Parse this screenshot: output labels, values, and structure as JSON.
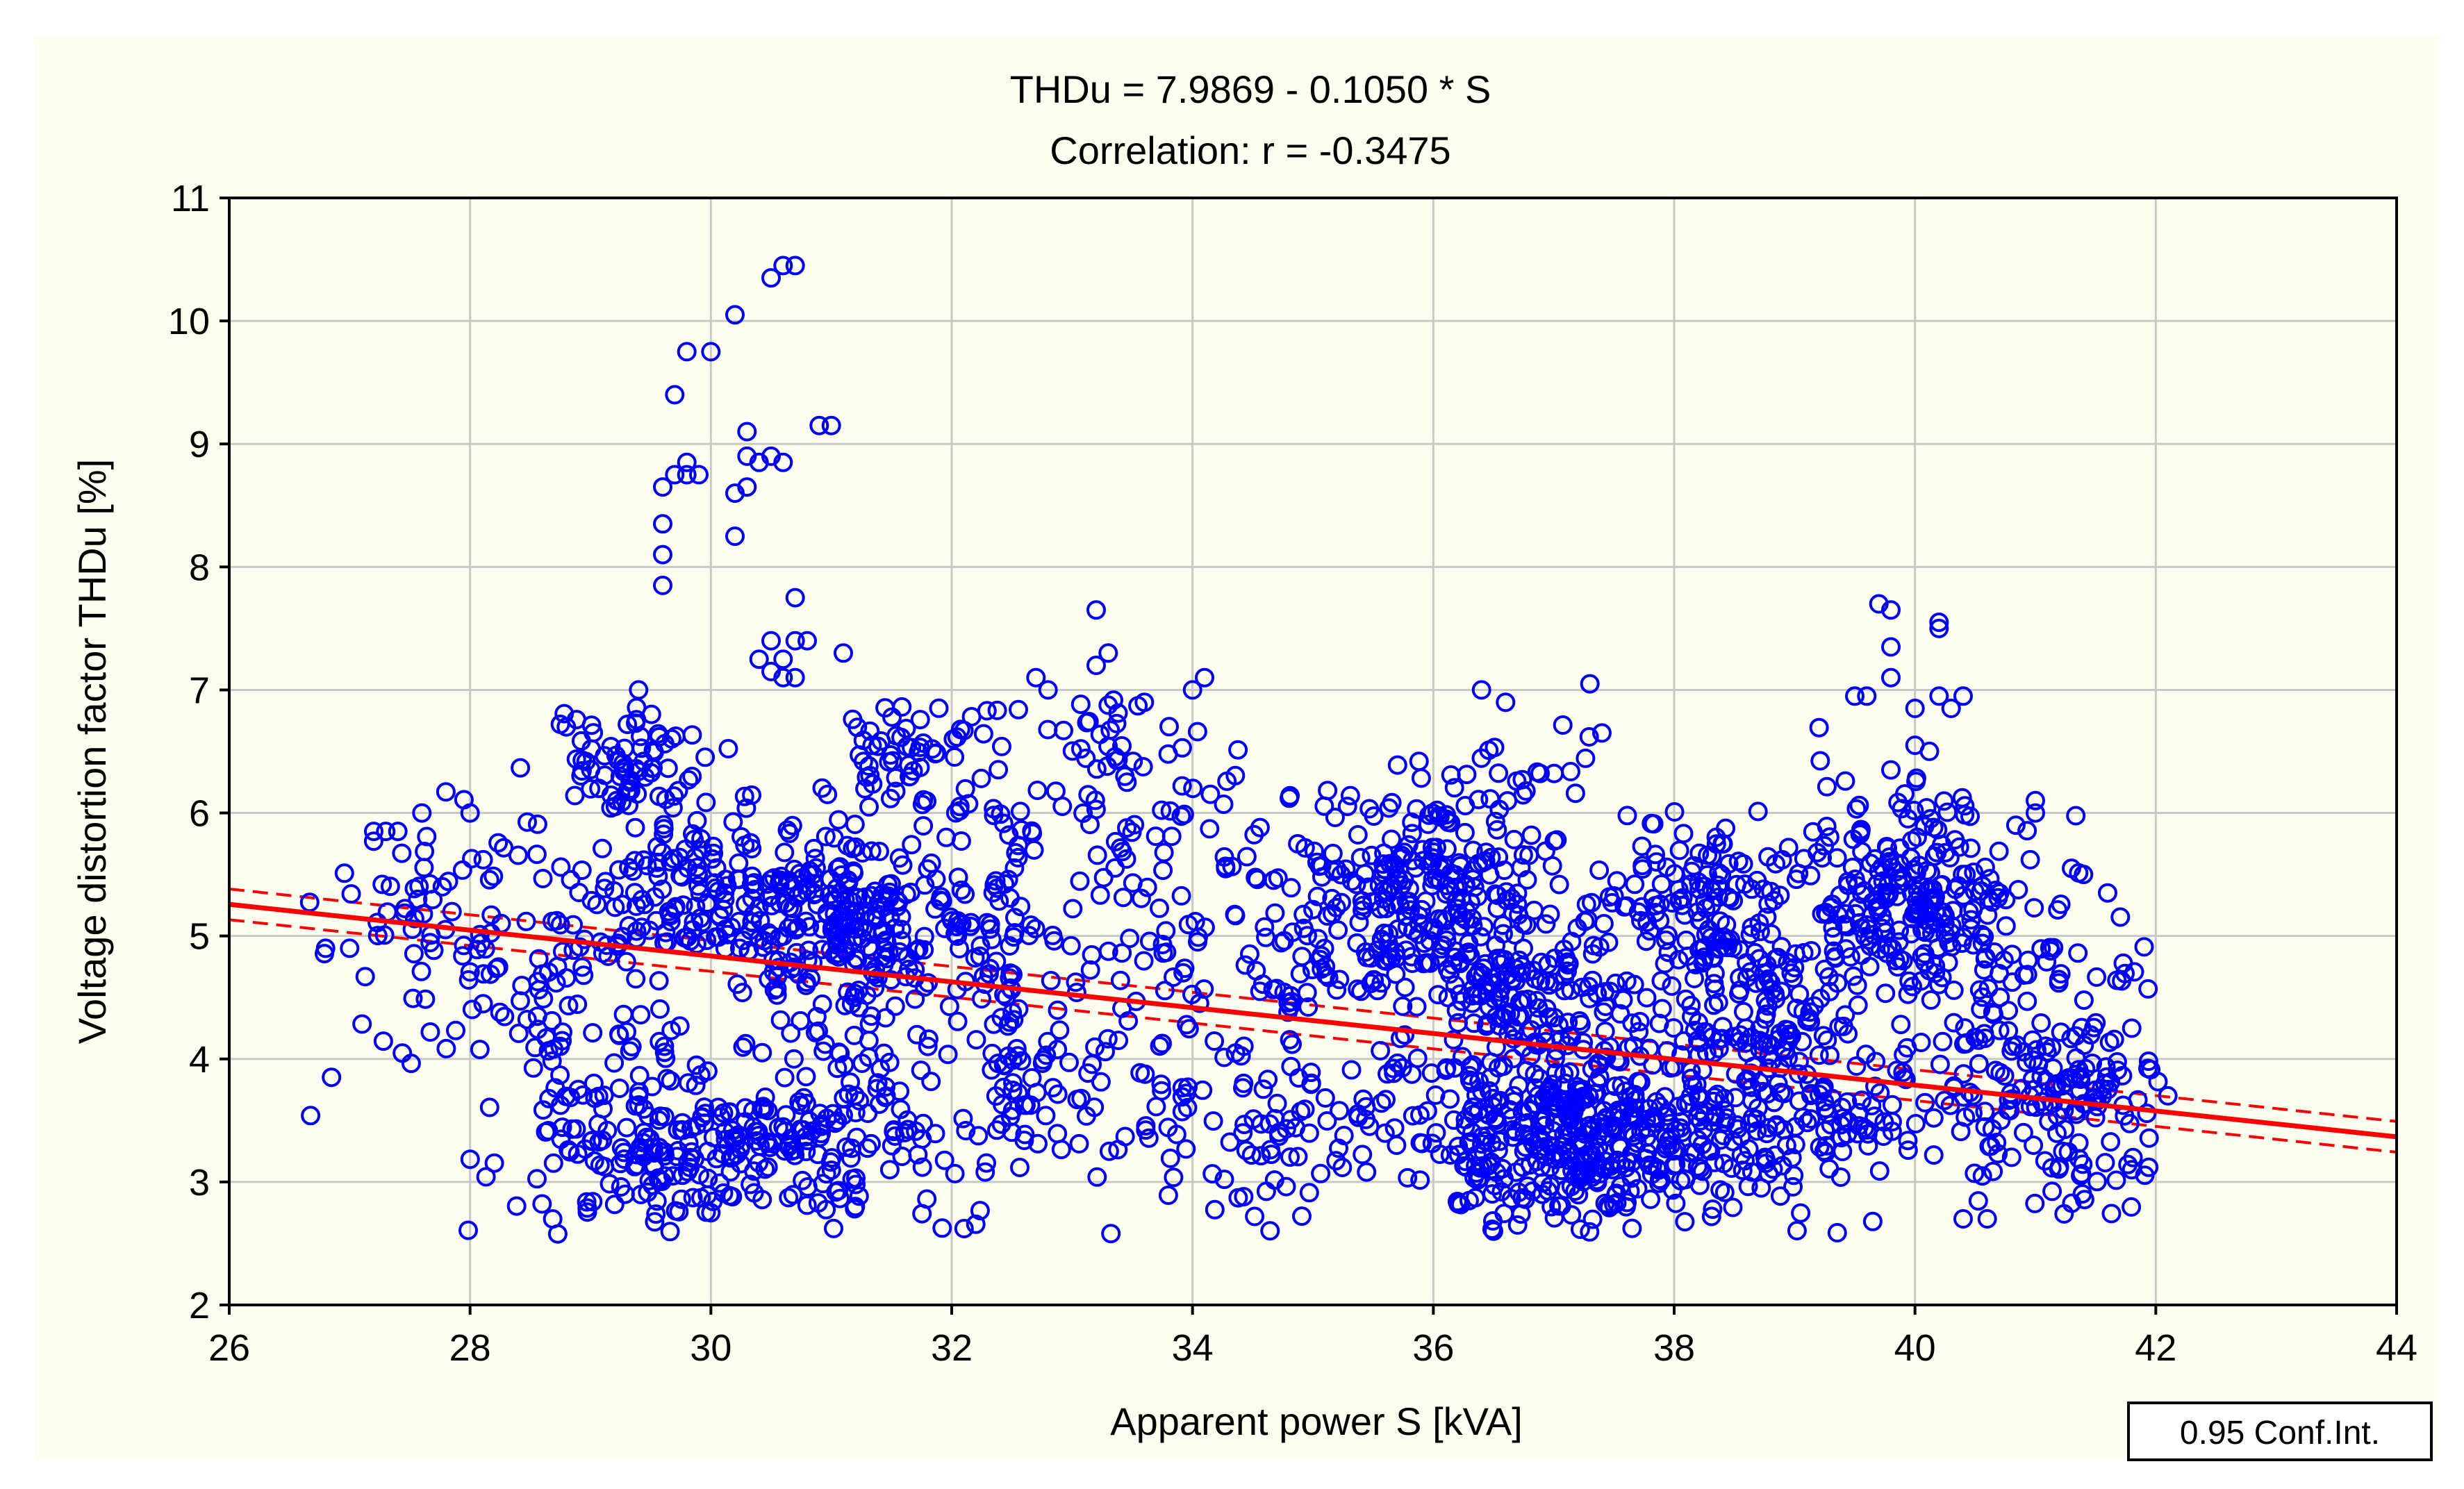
{
  "chart_data": {
    "type": "scatter",
    "title": "THDu = 7.9869 - 0.1050 * S",
    "subtitle": "Correlation: r = -0.3475",
    "xlabel": "Apparent power S [kVA]",
    "ylabel": "Voltage distortion factor THDu [%]",
    "xlim": [
      26,
      44
    ],
    "ylim": [
      2,
      11
    ],
    "x_ticks": [
      26,
      28,
      30,
      32,
      34,
      36,
      38,
      40,
      42,
      44
    ],
    "y_ticks": [
      2,
      3,
      4,
      5,
      6,
      7,
      8,
      9,
      10,
      11
    ],
    "grid": true,
    "regression": {
      "intercept": 7.9869,
      "slope": -0.105,
      "r": -0.3475,
      "confidence_band_halfwidth": 0.05,
      "color": "#ff0000"
    },
    "legend": {
      "text": "0.95 Conf.Int.",
      "placement": "bottom-right"
    },
    "marker_color": "#0000ff",
    "series": [
      {
        "name": "measurements",
        "clusters": [
          {
            "cx": 29.3,
            "cy": 6.4,
            "sx": 0.35,
            "sy": 0.25,
            "n": 70
          },
          {
            "cx": 30.2,
            "cy": 5.35,
            "sx": 0.8,
            "sy": 0.3,
            "n": 240
          },
          {
            "cx": 31.2,
            "cy": 4.9,
            "sx": 0.5,
            "sy": 0.35,
            "n": 110
          },
          {
            "cx": 32.0,
            "cy": 5.0,
            "sx": 0.5,
            "sy": 0.45,
            "n": 80
          },
          {
            "cx": 31.6,
            "cy": 6.5,
            "sx": 0.35,
            "sy": 0.25,
            "n": 60
          },
          {
            "cx": 29.8,
            "cy": 3.2,
            "sx": 0.8,
            "sy": 0.3,
            "n": 180
          },
          {
            "cx": 31.0,
            "cy": 3.5,
            "sx": 1.0,
            "sy": 0.4,
            "n": 150
          },
          {
            "cx": 28.6,
            "cy": 4.5,
            "sx": 0.8,
            "sy": 0.6,
            "n": 110
          },
          {
            "cx": 27.9,
            "cy": 5.3,
            "sx": 0.6,
            "sy": 0.4,
            "n": 40
          },
          {
            "cx": 33.4,
            "cy": 3.9,
            "sx": 1.0,
            "sy": 0.6,
            "n": 110
          },
          {
            "cx": 33.6,
            "cy": 5.8,
            "sx": 0.8,
            "sy": 0.5,
            "n": 80
          },
          {
            "cx": 33.3,
            "cy": 6.7,
            "sx": 0.4,
            "sy": 0.3,
            "n": 30
          },
          {
            "cx": 34.6,
            "cy": 4.9,
            "sx": 0.7,
            "sy": 0.5,
            "n": 60
          },
          {
            "cx": 35.9,
            "cy": 5.3,
            "sx": 0.5,
            "sy": 0.45,
            "n": 200
          },
          {
            "cx": 36.8,
            "cy": 4.4,
            "sx": 0.6,
            "sy": 0.5,
            "n": 240
          },
          {
            "cx": 37.2,
            "cy": 3.3,
            "sx": 0.7,
            "sy": 0.35,
            "n": 340
          },
          {
            "cx": 35.0,
            "cy": 3.3,
            "sx": 0.7,
            "sy": 0.3,
            "n": 60
          },
          {
            "cx": 36.7,
            "cy": 6.2,
            "sx": 0.4,
            "sy": 0.3,
            "n": 30
          },
          {
            "cx": 38.2,
            "cy": 5.3,
            "sx": 0.4,
            "sy": 0.3,
            "n": 100
          },
          {
            "cx": 38.7,
            "cy": 4.4,
            "sx": 0.5,
            "sy": 0.4,
            "n": 140
          },
          {
            "cx": 39.0,
            "cy": 3.5,
            "sx": 0.7,
            "sy": 0.35,
            "n": 160
          },
          {
            "cx": 39.9,
            "cy": 5.4,
            "sx": 0.45,
            "sy": 0.4,
            "n": 200
          },
          {
            "cx": 40.8,
            "cy": 4.8,
            "sx": 0.6,
            "sy": 0.5,
            "n": 100
          },
          {
            "cx": 41.0,
            "cy": 3.5,
            "sx": 0.5,
            "sy": 0.35,
            "n": 110
          },
          {
            "cx": 41.5,
            "cy": 3.8,
            "sx": 0.4,
            "sy": 0.2,
            "n": 30
          }
        ],
        "points": [
          [
            30.5,
            10.35
          ],
          [
            30.6,
            10.45
          ],
          [
            30.7,
            10.45
          ],
          [
            30.2,
            10.05
          ],
          [
            29.8,
            9.75
          ],
          [
            30.0,
            9.75
          ],
          [
            29.7,
            9.4
          ],
          [
            30.3,
            9.1
          ],
          [
            30.9,
            9.15
          ],
          [
            31.0,
            9.15
          ],
          [
            29.6,
            8.65
          ],
          [
            29.7,
            8.75
          ],
          [
            29.8,
            8.75
          ],
          [
            29.9,
            8.75
          ],
          [
            29.8,
            8.85
          ],
          [
            30.2,
            8.6
          ],
          [
            30.3,
            8.65
          ],
          [
            30.3,
            8.9
          ],
          [
            30.4,
            8.85
          ],
          [
            30.5,
            8.9
          ],
          [
            30.6,
            8.85
          ],
          [
            30.2,
            8.25
          ],
          [
            29.6,
            8.35
          ],
          [
            29.6,
            8.1
          ],
          [
            29.6,
            7.85
          ],
          [
            30.7,
            7.75
          ],
          [
            30.7,
            7.4
          ],
          [
            30.5,
            7.4
          ],
          [
            30.8,
            7.4
          ],
          [
            31.1,
            7.3
          ],
          [
            30.4,
            7.25
          ],
          [
            30.6,
            7.25
          ],
          [
            30.5,
            7.15
          ],
          [
            30.6,
            7.1
          ],
          [
            30.7,
            7.1
          ],
          [
            33.2,
            7.65
          ],
          [
            33.3,
            7.3
          ],
          [
            33.2,
            7.2
          ],
          [
            32.7,
            7.1
          ],
          [
            32.8,
            7.0
          ],
          [
            34.1,
            7.1
          ],
          [
            33.6,
            6.9
          ],
          [
            34.0,
            7.0
          ],
          [
            36.4,
            7.0
          ],
          [
            36.6,
            6.9
          ],
          [
            37.3,
            7.05
          ],
          [
            37.4,
            6.65
          ],
          [
            39.7,
            7.7
          ],
          [
            39.8,
            7.65
          ],
          [
            40.2,
            7.5
          ],
          [
            40.2,
            7.55
          ],
          [
            39.8,
            7.35
          ],
          [
            39.8,
            7.1
          ],
          [
            39.5,
            6.95
          ],
          [
            39.6,
            6.95
          ],
          [
            40.2,
            6.95
          ],
          [
            40.4,
            6.95
          ],
          [
            40.3,
            6.85
          ],
          [
            40.0,
            6.85
          ],
          [
            39.8,
            6.35
          ],
          [
            40.0,
            6.55
          ],
          [
            26.8,
            4.9
          ],
          [
            27.0,
            4.9
          ],
          [
            27.2,
            5.85
          ],
          [
            27.3,
            5.85
          ],
          [
            27.4,
            5.85
          ],
          [
            28.0,
            6.0
          ],
          [
            27.6,
            6.0
          ],
          [
            28.8,
            6.7
          ],
          [
            29.4,
            7.0
          ],
          [
            41.0,
            6.0
          ],
          [
            41.0,
            6.1
          ],
          [
            41.3,
            5.55
          ],
          [
            41.4,
            5.5
          ],
          [
            41.6,
            5.35
          ],
          [
            41.8,
            4.25
          ],
          [
            42.1,
            3.7
          ],
          [
            41.8,
            3.1
          ],
          [
            40.4,
            2.7
          ],
          [
            40.6,
            2.7
          ],
          [
            36.5,
            2.6
          ],
          [
            36.7,
            2.65
          ],
          [
            30.0,
            2.75
          ],
          [
            31.2,
            2.8
          ]
        ]
      }
    ]
  }
}
